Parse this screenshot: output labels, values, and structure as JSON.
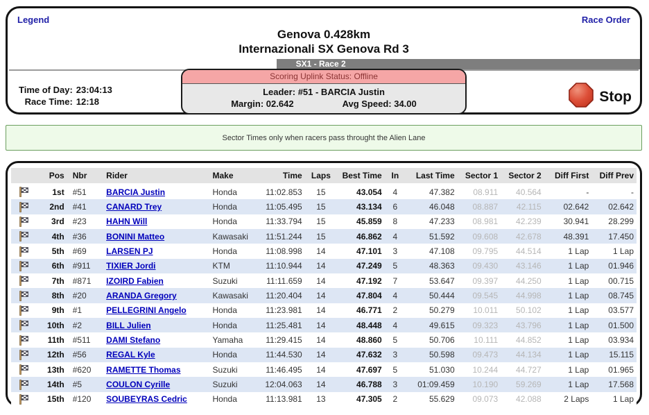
{
  "header": {
    "legend_link": "Legend",
    "race_order_link": "Race Order",
    "title": "Genova 0.428km",
    "subtitle": "Internazionali SX Genova Rd 3",
    "class_bar": "SX1 - Race 2",
    "time_of_day_label": "Time of Day:",
    "time_of_day": "23:04:13",
    "race_time_label": "Race Time:",
    "race_time": "12:18",
    "scoring": {
      "status": "Scoring Uplink Status: Offline",
      "leader_label": "Leader:",
      "leader_value": "#51 - BARCIA Justin",
      "margin_label": "Margin:",
      "margin_value": "02.642",
      "avg_speed_label": "Avg Speed:",
      "avg_speed_value": "34.00"
    },
    "stop_button_label": "Stop"
  },
  "banner": {
    "text": "Sector Times only when racers pass throught the Alien Lane"
  },
  "table": {
    "columns": [
      "Pos",
      "Nbr",
      "Rider",
      "Make",
      "Time",
      "Laps",
      "Best Time",
      "In",
      "Last Time",
      "Sector 1",
      "Sector 2",
      "Diff First",
      "Diff Prev"
    ],
    "rows": [
      {
        "pos": "1st",
        "nbr": "#51",
        "rider": "BARCIA Justin",
        "make": "Honda",
        "time": "11:02.853",
        "laps": "15",
        "best_time": "43.054",
        "in": "4",
        "last_time": "47.382",
        "sector1": "08.911",
        "sector2": "40.564",
        "diff_first": "-",
        "diff_prev": "-"
      },
      {
        "pos": "2nd",
        "nbr": "#41",
        "rider": "CANARD Trey",
        "make": "Honda",
        "time": "11:05.495",
        "laps": "15",
        "best_time": "43.134",
        "in": "6",
        "last_time": "46.048",
        "sector1": "08.887",
        "sector2": "42.115",
        "diff_first": "02.642",
        "diff_prev": "02.642"
      },
      {
        "pos": "3rd",
        "nbr": "#23",
        "rider": "HAHN Will",
        "make": "Honda",
        "time": "11:33.794",
        "laps": "15",
        "best_time": "45.859",
        "in": "8",
        "last_time": "47.233",
        "sector1": "08.981",
        "sector2": "42.239",
        "diff_first": "30.941",
        "diff_prev": "28.299"
      },
      {
        "pos": "4th",
        "nbr": "#36",
        "rider": "BONINI Matteo",
        "make": "Kawasaki",
        "time": "11:51.244",
        "laps": "15",
        "best_time": "46.862",
        "in": "4",
        "last_time": "51.592",
        "sector1": "09.608",
        "sector2": "42.678",
        "diff_first": "48.391",
        "diff_prev": "17.450"
      },
      {
        "pos": "5th",
        "nbr": "#69",
        "rider": "LARSEN PJ",
        "make": "Honda",
        "time": "11:08.998",
        "laps": "14",
        "best_time": "47.101",
        "in": "3",
        "last_time": "47.108",
        "sector1": "09.795",
        "sector2": "44.514",
        "diff_first": "1 Lap",
        "diff_prev": "1 Lap"
      },
      {
        "pos": "6th",
        "nbr": "#911",
        "rider": "TIXIER Jordi",
        "make": "KTM",
        "time": "11:10.944",
        "laps": "14",
        "best_time": "47.249",
        "in": "5",
        "last_time": "48.363",
        "sector1": "09.430",
        "sector2": "43.146",
        "diff_first": "1 Lap",
        "diff_prev": "01.946"
      },
      {
        "pos": "7th",
        "nbr": "#871",
        "rider": "IZOIRD Fabien",
        "make": "Suzuki",
        "time": "11:11.659",
        "laps": "14",
        "best_time": "47.192",
        "in": "7",
        "last_time": "53.647",
        "sector1": "09.397",
        "sector2": "44.250",
        "diff_first": "1 Lap",
        "diff_prev": "00.715"
      },
      {
        "pos": "8th",
        "nbr": "#20",
        "rider": "ARANDA Gregory",
        "make": "Kawasaki",
        "time": "11:20.404",
        "laps": "14",
        "best_time": "47.804",
        "in": "4",
        "last_time": "50.444",
        "sector1": "09.545",
        "sector2": "44.998",
        "diff_first": "1 Lap",
        "diff_prev": "08.745"
      },
      {
        "pos": "9th",
        "nbr": "#1",
        "rider": "PELLEGRINI Angelo",
        "make": "Honda",
        "time": "11:23.981",
        "laps": "14",
        "best_time": "46.771",
        "in": "2",
        "last_time": "50.279",
        "sector1": "10.011",
        "sector2": "50.102",
        "diff_first": "1 Lap",
        "diff_prev": "03.577"
      },
      {
        "pos": "10th",
        "nbr": "#2",
        "rider": "BILL Julien",
        "make": "Honda",
        "time": "11:25.481",
        "laps": "14",
        "best_time": "48.448",
        "in": "4",
        "last_time": "49.615",
        "sector1": "09.323",
        "sector2": "43.796",
        "diff_first": "1 Lap",
        "diff_prev": "01.500"
      },
      {
        "pos": "11th",
        "nbr": "#511",
        "rider": "DAMI Stefano",
        "make": "Yamaha",
        "time": "11:29.415",
        "laps": "14",
        "best_time": "48.860",
        "in": "5",
        "last_time": "50.706",
        "sector1": "10.111",
        "sector2": "44.852",
        "diff_first": "1 Lap",
        "diff_prev": "03.934"
      },
      {
        "pos": "12th",
        "nbr": "#56",
        "rider": "REGAL Kyle",
        "make": "Honda",
        "time": "11:44.530",
        "laps": "14",
        "best_time": "47.632",
        "in": "3",
        "last_time": "50.598",
        "sector1": "09.473",
        "sector2": "44.134",
        "diff_first": "1 Lap",
        "diff_prev": "15.115"
      },
      {
        "pos": "13th",
        "nbr": "#620",
        "rider": "RAMETTE Thomas",
        "make": "Suzuki",
        "time": "11:46.495",
        "laps": "14",
        "best_time": "47.697",
        "in": "5",
        "last_time": "51.030",
        "sector1": "10.244",
        "sector2": "44.727",
        "diff_first": "1 Lap",
        "diff_prev": "01.965"
      },
      {
        "pos": "14th",
        "nbr": "#5",
        "rider": "COULON Cyrille",
        "make": "Suzuki",
        "time": "12:04.063",
        "laps": "14",
        "best_time": "46.788",
        "in": "3",
        "last_time": "01:09.459",
        "sector1": "10.190",
        "sector2": "59.269",
        "diff_first": "1 Lap",
        "diff_prev": "17.568"
      },
      {
        "pos": "15th",
        "nbr": "#120",
        "rider": "SOUBEYRAS Cedric",
        "make": "Honda",
        "time": "11:13.981",
        "laps": "13",
        "best_time": "47.305",
        "in": "2",
        "last_time": "55.629",
        "sector1": "09.073",
        "sector2": "42.088",
        "diff_first": "2 Laps",
        "diff_prev": "1 Lap"
      }
    ]
  },
  "icons": {
    "row_flag": "checkered-flag-icon",
    "stop": "stop-octagon-icon"
  },
  "colors": {
    "link_blue": "#2121a8",
    "rider_link_blue": "#0000bb",
    "row_alt_blue": "#dde6f4",
    "table_header_gray": "#e3e3e3",
    "class_bar_gray": "#7e7e7e",
    "status_pink": "#f5a6a6",
    "status_text_red": "#8b3434",
    "banner_green_bg": "#eefae9",
    "banner_green_border": "#6b9e5e",
    "stop_red": "#cc3b22",
    "sector_gray": "#b6b6b6"
  }
}
